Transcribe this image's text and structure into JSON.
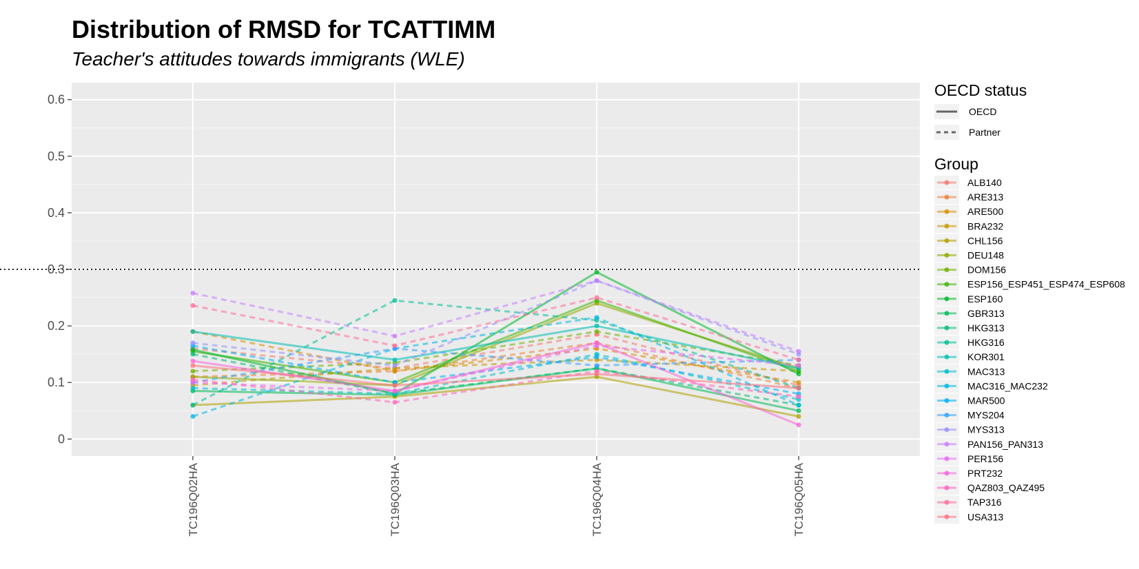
{
  "chart_data": {
    "type": "line",
    "title": "Distribution of RMSD for TCATTIMM",
    "subtitle": "Teacher's attitudes towards immigrants (WLE)",
    "categories": [
      "TC196Q02HA",
      "TC196Q03HA",
      "TC196Q04HA",
      "TC196Q05HA"
    ],
    "xlabel": "",
    "ylabel": "",
    "ylim": [
      -0.03,
      0.63
    ],
    "yticks": [
      0,
      0.1,
      0.2,
      0.3,
      0.4,
      0.5,
      0.6
    ],
    "ytick_labels": [
      "0",
      "0.1",
      "0.2",
      "0.3",
      "0.4",
      "0.5",
      "0.6"
    ],
    "reference_line": 0.3,
    "grid": true,
    "legend_position": "right",
    "linetype_legend": {
      "title": "OECD status",
      "entries": [
        {
          "label": "OECD",
          "style": "solid"
        },
        {
          "label": "Partner",
          "style": "dashed"
        }
      ]
    },
    "color_legend_title": "Group",
    "series": [
      {
        "name": "ALB140",
        "color": "#F8766D",
        "status": "Partner",
        "values": [
          0.16,
          0.125,
          0.185,
          0.095
        ]
      },
      {
        "name": "ARE313",
        "color": "#EC8239",
        "status": "Partner",
        "values": [
          0.11,
          0.12,
          0.17,
          0.09
        ]
      },
      {
        "name": "ARE500",
        "color": "#DB8E00",
        "status": "Partner",
        "values": [
          0.19,
          0.12,
          0.16,
          0.1
        ]
      },
      {
        "name": "BRA232",
        "color": "#C79800",
        "status": "Partner",
        "values": [
          0.095,
          0.125,
          0.14,
          0.12
        ]
      },
      {
        "name": "CHL156",
        "color": "#AFA100",
        "status": "OECD",
        "values": [
          0.06,
          0.075,
          0.11,
          0.04
        ]
      },
      {
        "name": "DEU148",
        "color": "#94A900",
        "status": "OECD",
        "values": [
          0.11,
          0.095,
          0.24,
          0.125
        ]
      },
      {
        "name": "DOM156",
        "color": "#72B000",
        "status": "Partner",
        "values": [
          0.12,
          0.135,
          0.19,
          0.13
        ]
      },
      {
        "name": "ESP156_ESP451_ESP474_ESP608",
        "color": "#3CB500",
        "status": "OECD",
        "values": [
          0.155,
          0.1,
          0.245,
          0.12
        ]
      },
      {
        "name": "ESP160",
        "color": "#00B92A",
        "status": "OECD",
        "values": [
          0.158,
          0.08,
          0.295,
          0.115
        ]
      },
      {
        "name": "GBR313",
        "color": "#00BC56",
        "status": "OECD",
        "values": [
          0.085,
          0.078,
          0.125,
          0.05
        ]
      },
      {
        "name": "HKG313",
        "color": "#00BE77",
        "status": "Partner",
        "values": [
          0.15,
          0.08,
          0.125,
          0.06
        ]
      },
      {
        "name": "HKG316",
        "color": "#00BF96",
        "status": "Partner",
        "values": [
          0.06,
          0.245,
          0.21,
          0.09
        ]
      },
      {
        "name": "KOR301",
        "color": "#00BFB2",
        "status": "OECD",
        "values": [
          0.19,
          0.14,
          0.2,
          0.125
        ]
      },
      {
        "name": "MAC313",
        "color": "#00BDCD",
        "status": "Partner",
        "values": [
          0.09,
          0.08,
          0.15,
          0.07
        ]
      },
      {
        "name": "MAC316_MAC232",
        "color": "#00B8E5",
        "status": "Partner",
        "values": [
          0.04,
          0.16,
          0.215,
          0.06
        ]
      },
      {
        "name": "MAR500",
        "color": "#00B0F6",
        "status": "Partner",
        "values": [
          0.165,
          0.1,
          0.145,
          0.08
        ]
      },
      {
        "name": "MYS204",
        "color": "#35A2FF",
        "status": "Partner",
        "values": [
          0.1,
          0.16,
          0.13,
          0.14
        ]
      },
      {
        "name": "MYS313",
        "color": "#9590FF",
        "status": "Partner",
        "values": [
          0.17,
          0.13,
          0.28,
          0.15
        ]
      },
      {
        "name": "PAN156_PAN313",
        "color": "#C77CFF",
        "status": "Partner",
        "values": [
          0.258,
          0.182,
          0.28,
          0.155
        ]
      },
      {
        "name": "PER156",
        "color": "#E76BF3",
        "status": "Partner",
        "values": [
          0.1,
          0.085,
          0.165,
          0.13
        ]
      },
      {
        "name": "PRT232",
        "color": "#FA62DB",
        "status": "OECD",
        "values": [
          0.138,
          0.085,
          0.17,
          0.025
        ]
      },
      {
        "name": "QAZ803_QAZ495",
        "color": "#FF62BC",
        "status": "Partner",
        "values": [
          0.105,
          0.065,
          0.12,
          0.075
        ]
      },
      {
        "name": "TAP316",
        "color": "#FF6A98",
        "status": "Partner",
        "values": [
          0.236,
          0.165,
          0.25,
          0.14
        ]
      },
      {
        "name": "USA313",
        "color": "#FC717F",
        "status": "OECD",
        "values": [
          0.13,
          0.095,
          0.115,
          0.09
        ]
      }
    ]
  }
}
